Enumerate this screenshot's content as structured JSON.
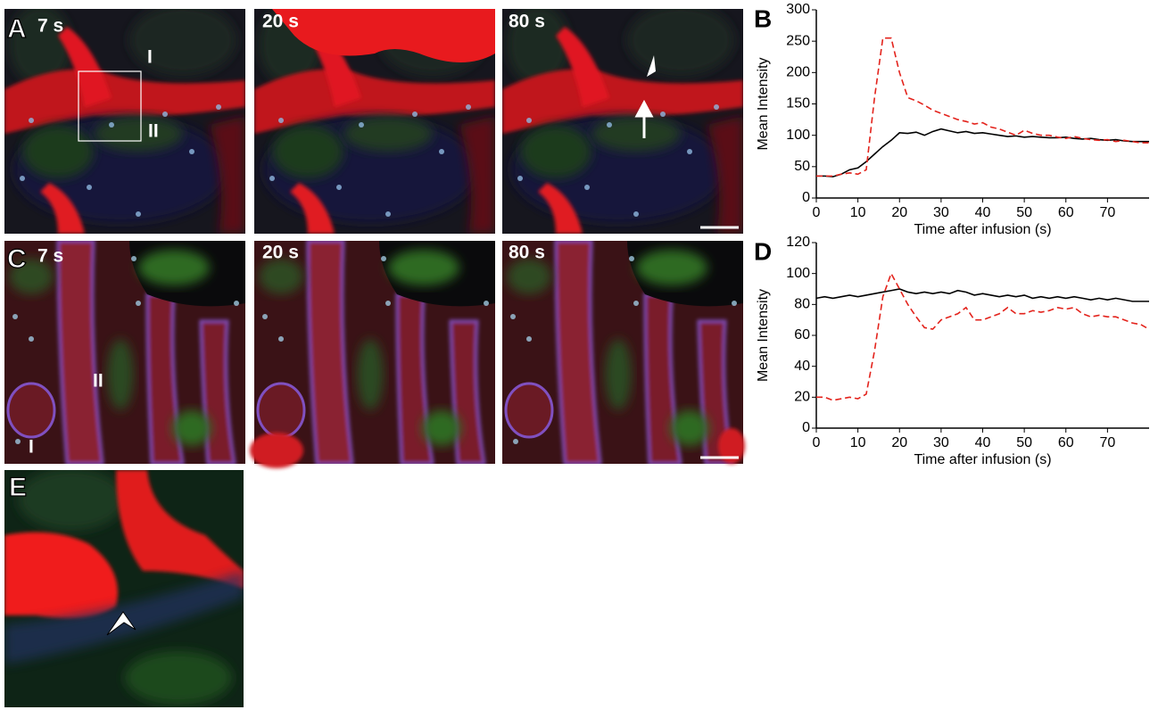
{
  "panels": {
    "A": {
      "label": "A",
      "frames": [
        "7 s",
        "20 s",
        "80 s"
      ],
      "regions": [
        "I",
        "II"
      ]
    },
    "C": {
      "label": "C",
      "frames": [
        "7 s",
        "20 s",
        "80 s"
      ],
      "regions": [
        "II",
        "I"
      ]
    },
    "E": {
      "label": "E"
    }
  },
  "chart_data": [
    {
      "type": "line",
      "panel_label": "B",
      "y_label": "Mean Intensity",
      "x_label": "Time after infusion (s)",
      "x": [
        0,
        2,
        4,
        6,
        8,
        10,
        12,
        14,
        16,
        18,
        20,
        22,
        24,
        26,
        28,
        30,
        32,
        34,
        36,
        38,
        40,
        42,
        44,
        46,
        48,
        50,
        52,
        54,
        56,
        58,
        60,
        62,
        64,
        66,
        68,
        70,
        72,
        74,
        76,
        78,
        80
      ],
      "xlim": [
        0,
        80
      ],
      "xticks": [
        0,
        10,
        20,
        30,
        40,
        50,
        60,
        70
      ],
      "ylim": [
        0,
        300
      ],
      "yticks": [
        0,
        50,
        100,
        150,
        200,
        250,
        300
      ],
      "series": [
        {
          "color": "#000000",
          "line_style": "solid",
          "values": [
            35,
            35,
            34,
            38,
            45,
            48,
            58,
            70,
            82,
            92,
            104,
            103,
            105,
            100,
            106,
            110,
            107,
            104,
            106,
            103,
            104,
            102,
            100,
            98,
            99,
            97,
            98,
            97,
            96,
            96,
            97,
            95,
            94,
            95,
            93,
            92,
            93,
            91,
            90,
            90,
            90
          ]
        },
        {
          "color": "#e3231c",
          "line_style": "dashed",
          "values": [
            35,
            35,
            35,
            38,
            40,
            38,
            45,
            160,
            255,
            255,
            200,
            160,
            155,
            148,
            140,
            135,
            130,
            125,
            122,
            118,
            120,
            113,
            110,
            105,
            100,
            108,
            103,
            100,
            100,
            97,
            95,
            98,
            95,
            93,
            92,
            93,
            90,
            92,
            90,
            88,
            88
          ]
        }
      ]
    },
    {
      "type": "line",
      "panel_label": "D",
      "y_label": "Mean Intensity",
      "x_label": "Time after infusion (s)",
      "x": [
        0,
        2,
        4,
        6,
        8,
        10,
        12,
        14,
        16,
        18,
        20,
        22,
        24,
        26,
        28,
        30,
        32,
        34,
        36,
        38,
        40,
        42,
        44,
        46,
        48,
        50,
        52,
        54,
        56,
        58,
        60,
        62,
        64,
        66,
        68,
        70,
        72,
        74,
        76,
        78,
        80
      ],
      "xlim": [
        0,
        80
      ],
      "xticks": [
        0,
        10,
        20,
        30,
        40,
        50,
        60,
        70
      ],
      "ylim": [
        0,
        120
      ],
      "yticks": [
        0,
        20,
        40,
        60,
        80,
        100,
        120
      ],
      "series": [
        {
          "color": "#000000",
          "line_style": "solid",
          "values": [
            84,
            85,
            84,
            85,
            86,
            85,
            86,
            87,
            88,
            89,
            90,
            88,
            87,
            88,
            87,
            88,
            87,
            89,
            88,
            86,
            87,
            86,
            85,
            86,
            85,
            86,
            84,
            85,
            84,
            85,
            84,
            85,
            84,
            83,
            84,
            83,
            84,
            83,
            82,
            82,
            82
          ]
        },
        {
          "color": "#e3231c",
          "line_style": "dashed",
          "values": [
            20,
            20,
            18,
            19,
            20,
            19,
            22,
            50,
            85,
            100,
            90,
            80,
            72,
            65,
            64,
            70,
            72,
            74,
            78,
            70,
            70,
            72,
            74,
            78,
            74,
            74,
            76,
            75,
            76,
            78,
            77,
            78,
            74,
            72,
            73,
            72,
            72,
            70,
            68,
            67,
            64
          ]
        }
      ]
    }
  ]
}
